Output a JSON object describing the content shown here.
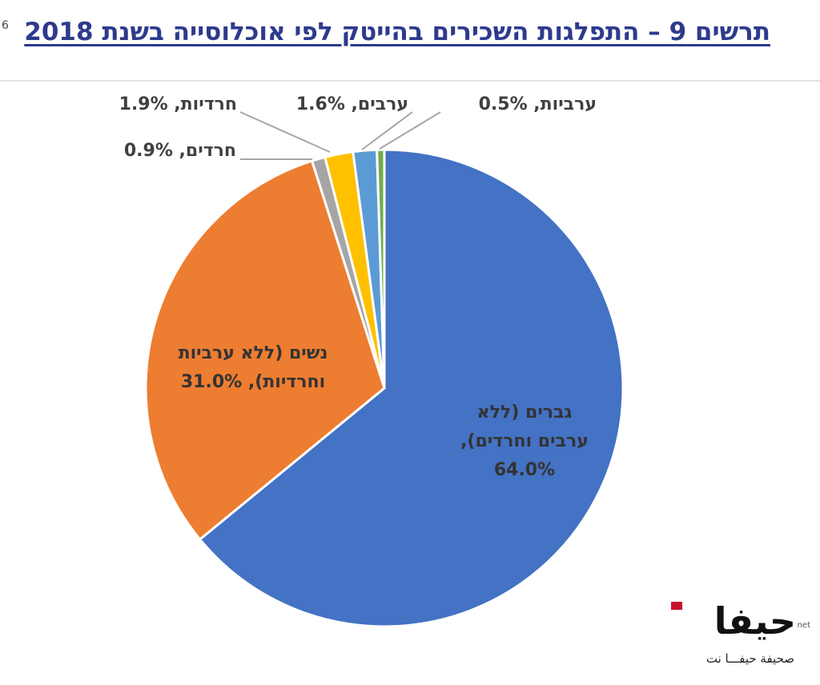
{
  "title": "תרשים 9 – התפלגות השכירים בהייטק לפי אוכלוסייה בשנת 2018",
  "footnote_marker": "6",
  "chart_data": {
    "type": "pie",
    "title": "תרשים 9 – התפלגות השכירים בהייטק לפי אוכלוסייה בשנת 2018",
    "slices": [
      {
        "label_lines": [
          "גברים (ללא",
          "ערבים וחרדים),",
          "64.0%"
        ],
        "value": 64.0,
        "color": "#4472c4"
      },
      {
        "label_lines": [
          "נשים (ללא ערביות",
          "וחרדיות), 31.0%"
        ],
        "value": 31.0,
        "color": "#ed7d31"
      },
      {
        "label_lines": [
          "חרדים, 0.9%"
        ],
        "value": 0.9,
        "color": "#a5a5a5"
      },
      {
        "label_lines": [
          "חרדיות, 1.9%"
        ],
        "value": 1.9,
        "color": "#ffc000"
      },
      {
        "label_lines": [
          "ערבים, 1.6%"
        ],
        "value": 1.6,
        "color": "#5b9bd5"
      },
      {
        "label_lines": [
          "ערביות, 0.5%"
        ],
        "value": 0.5,
        "color": "#70ad47"
      }
    ]
  },
  "logo": {
    "main": "حيفا",
    "net": "net",
    "subtitle": "صحيفة حيفـــا نت"
  }
}
